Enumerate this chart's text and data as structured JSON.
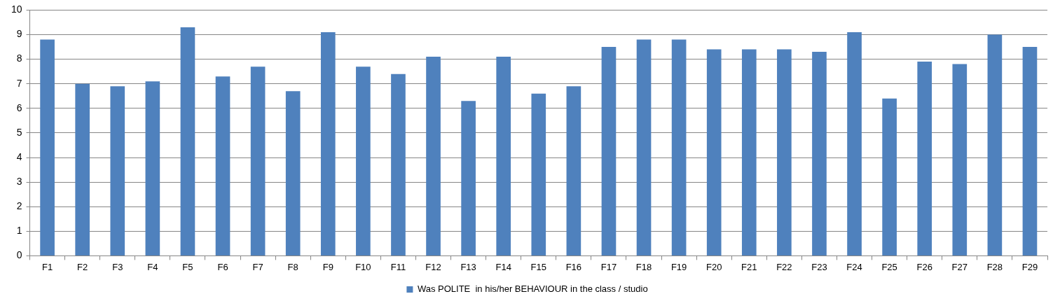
{
  "chart_data": {
    "type": "bar",
    "categories": [
      "F1",
      "F2",
      "F3",
      "F4",
      "F5",
      "F6",
      "F7",
      "F8",
      "F9",
      "F10",
      "F11",
      "F12",
      "F13",
      "F14",
      "F15",
      "F16",
      "F17",
      "F18",
      "F19",
      "F20",
      "F21",
      "F22",
      "F23",
      "F24",
      "F25",
      "F26",
      "F27",
      "F28",
      "F29"
    ],
    "series": [
      {
        "name": "Was POLITE  in his/her BEHAVIOUR in the class / studio",
        "color": "#4f81bd",
        "values": [
          8.8,
          7.0,
          6.9,
          7.1,
          9.3,
          7.3,
          7.7,
          6.7,
          9.1,
          7.7,
          7.4,
          8.1,
          6.3,
          8.1,
          6.6,
          6.9,
          8.5,
          8.8,
          8.8,
          8.4,
          8.4,
          8.4,
          8.3,
          9.1,
          6.4,
          7.9,
          7.8,
          9.0,
          8.5
        ]
      }
    ],
    "ylim": [
      0,
      10
    ],
    "yticks": [
      0,
      1,
      2,
      3,
      4,
      5,
      6,
      7,
      8,
      9,
      10
    ],
    "grid": "y",
    "legend": "bottom"
  }
}
